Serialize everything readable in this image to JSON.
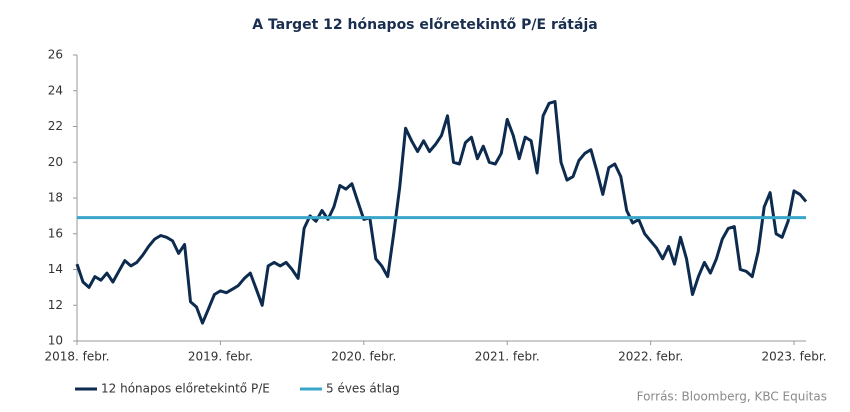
{
  "chart_data": {
    "type": "line",
    "title": "A Target 12 hónapos előretekintő P/E rátája",
    "source": "Forrás: Bloomberg,  KBC Equitas",
    "xlim": [
      0,
      122
    ],
    "xticks": [
      {
        "value": 0,
        "label": "2018. febr."
      },
      {
        "value": 24,
        "label": "2019. febr."
      },
      {
        "value": 48,
        "label": "2020. febr."
      },
      {
        "value": 72,
        "label": "2021. febr."
      },
      {
        "value": 96,
        "label": "2022. febr."
      },
      {
        "value": 120,
        "label": "2023. febr."
      }
    ],
    "ylim": [
      10,
      26
    ],
    "yticks": [
      10,
      12,
      14,
      16,
      18,
      20,
      22,
      24,
      26
    ],
    "grid": false,
    "series": [
      {
        "name": "12 hónapos előretekintő P/E",
        "color": "#0d2b4e",
        "values": [
          14.3,
          13.3,
          13.0,
          13.6,
          13.4,
          13.8,
          13.3,
          13.9,
          14.5,
          14.2,
          14.4,
          14.8,
          15.3,
          15.7,
          15.9,
          15.8,
          15.6,
          14.9,
          15.4,
          12.2,
          11.9,
          11.0,
          11.8,
          12.6,
          12.8,
          12.7,
          12.9,
          13.1,
          13.5,
          13.8,
          12.9,
          12.0,
          14.2,
          14.4,
          14.2,
          14.4,
          14.0,
          13.5,
          16.3,
          17.0,
          16.7,
          17.3,
          16.8,
          17.5,
          18.7,
          18.5,
          18.8,
          17.8,
          16.8,
          16.9,
          14.6,
          14.2,
          13.6,
          16.0,
          18.6,
          21.9,
          21.2,
          20.6,
          21.2,
          20.6,
          21.0,
          21.5,
          22.6,
          20.0,
          19.9,
          21.1,
          21.4,
          20.2,
          20.9,
          20.0,
          19.9,
          20.5,
          22.4,
          21.5,
          20.2,
          21.4,
          21.2,
          19.4,
          22.6,
          23.3,
          23.4,
          20.0,
          19.0,
          19.2,
          20.1,
          20.5,
          20.7,
          19.5,
          18.2,
          19.7,
          19.9,
          19.2,
          17.3,
          16.6,
          16.8,
          16.0,
          15.6,
          15.2,
          14.6,
          15.3,
          14.3,
          15.8,
          14.6,
          12.6,
          13.6,
          14.4,
          13.8,
          14.6,
          15.7,
          16.3,
          16.4,
          14.0,
          13.9,
          13.6,
          15.0,
          17.5,
          18.3,
          16.0,
          15.8,
          16.7,
          18.4,
          18.2,
          17.8
        ]
      },
      {
        "name": "5 éves átlag",
        "color": "#3aa6c9",
        "value": 16.9
      }
    ]
  }
}
